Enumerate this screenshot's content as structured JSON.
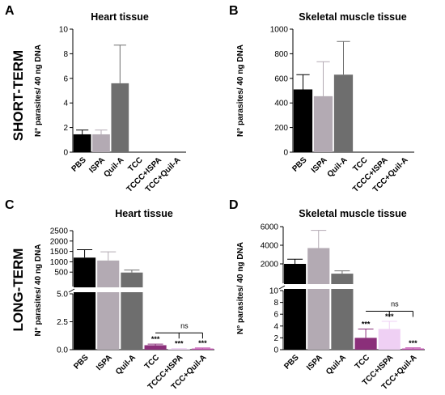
{
  "rows": [
    "SHORT-TERM",
    "LONG-TERM"
  ],
  "colors": {
    "PBS": "#000000",
    "ISPA": "#b3aab3",
    "Quil-A": "#6e6e6e",
    "TCC": "#8b2f7a",
    "TCCC+ISPA": "#efd0f4",
    "TCC+ISPA": "#efd0f4",
    "TCC+Quil-A": "#c04fae"
  },
  "chart_data": [
    {
      "panel": "A",
      "row": "SHORT-TERM",
      "type": "bar",
      "title": "Heart tissue",
      "ylabel": "N° parasites/ 40 ng DNA",
      "categories": [
        "PBS",
        "ISPA",
        "Quil-A",
        "TCC",
        "TCCC+ISPA",
        "TCC+Quil-A"
      ],
      "values": [
        1.45,
        1.45,
        5.6,
        0,
        0,
        0
      ],
      "errors": [
        0.35,
        0.35,
        3.1,
        0,
        0,
        0
      ],
      "ylim": [
        0,
        10
      ],
      "yticks": [
        "0",
        "2",
        "4",
        "6",
        "8",
        "10"
      ],
      "significance": []
    },
    {
      "panel": "B",
      "row": "SHORT-TERM",
      "type": "bar",
      "title": "Skeletal muscle tissue",
      "ylabel": "N° parasites/ 40 ng DNA",
      "categories": [
        "PBS",
        "ISPA",
        "Quil-A",
        "TCC",
        "TCCC+ISPA",
        "TCC+Quil-A"
      ],
      "values": [
        510,
        455,
        630,
        0,
        0,
        0
      ],
      "errors": [
        120,
        280,
        270,
        0,
        0,
        0
      ],
      "ylim": [
        0,
        1000
      ],
      "yticks": [
        "0",
        "200",
        "400",
        "600",
        "800",
        "1000"
      ],
      "significance": []
    },
    {
      "panel": "C",
      "row": "LONG-TERM",
      "type": "bar",
      "title": "Heart tissue",
      "ylabel": "N° parasites/ 40 ng DNA",
      "categories": [
        "PBS",
        "ISPA",
        "Quil-A",
        "TCC",
        "TCCC+ISPA",
        "TCC+Quil-A"
      ],
      "values": [
        1200,
        1060,
        480,
        0.4,
        0.05,
        0.1
      ],
      "errors": [
        380,
        420,
        120,
        0.1,
        0.05,
        0.05
      ],
      "broken_axis": {
        "lower": [
          0,
          5
        ],
        "upper": [
          0,
          2500
        ]
      },
      "yticks_lower": [
        "0.0",
        "2.5",
        "5.0"
      ],
      "yticks_upper": [
        "500",
        "1000",
        "1500",
        "2000",
        "2500"
      ],
      "significance": [
        "***",
        "***",
        "***"
      ],
      "comparison": "ns"
    },
    {
      "panel": "D",
      "row": "LONG-TERM",
      "type": "bar",
      "title": "Skeletal muscle tissue",
      "ylabel": "N° parasites/ 40 ng DNA",
      "categories": [
        "PBS",
        "ISPA",
        "Quil-A",
        "TCC",
        "TCC+ISPA",
        "TCC+Quil-A"
      ],
      "values": [
        2000,
        3700,
        950,
        2,
        3.5,
        0.2
      ],
      "errors": [
        500,
        1900,
        300,
        1.5,
        1.3,
        0.1
      ],
      "broken_axis": {
        "lower": [
          0,
          10
        ],
        "upper": [
          0,
          6000
        ]
      },
      "yticks_lower": [
        "0",
        "2",
        "4",
        "6",
        "8",
        "10"
      ],
      "yticks_upper": [
        "2000",
        "4000",
        "6000"
      ],
      "significance": [
        "***",
        "***",
        "***"
      ],
      "comparison": "ns"
    }
  ]
}
